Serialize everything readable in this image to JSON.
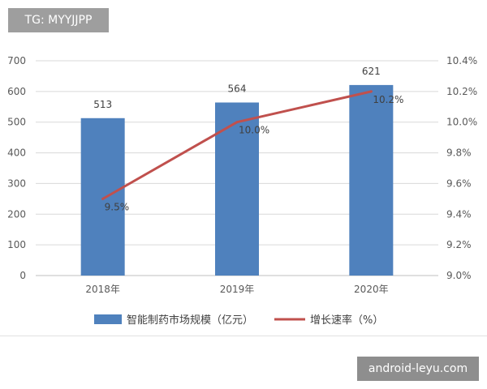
{
  "watermarks": {
    "top": "TG: MYYJJPP",
    "bottom": "android-leyu.com"
  },
  "chart_data": {
    "type": "bar",
    "categories": [
      "2018年",
      "2019年",
      "2020年"
    ],
    "series": [
      {
        "name": "智能制药市场规模（亿元）",
        "type": "bar",
        "axis": "left",
        "values": [
          513,
          564,
          621
        ],
        "labels": [
          "513",
          "564",
          "621"
        ],
        "color": "#4f81bd"
      },
      {
        "name": "增长速率（%）",
        "type": "line",
        "axis": "right",
        "values": [
          9.5,
          10.0,
          10.2
        ],
        "labels": [
          "9.5%",
          "10.0%",
          "10.2%"
        ],
        "color": "#c0504d"
      }
    ],
    "ylim": [
      0,
      700
    ],
    "y_ticks": [
      "0",
      "100",
      "200",
      "300",
      "400",
      "500",
      "600",
      "700"
    ],
    "y2lim": [
      9.0,
      10.4
    ],
    "y2_ticks": [
      "9.0%",
      "9.2%",
      "9.4%",
      "9.6%",
      "9.8%",
      "10.0%",
      "10.2%",
      "10.4%"
    ],
    "grid": true,
    "legend": "bottom"
  }
}
